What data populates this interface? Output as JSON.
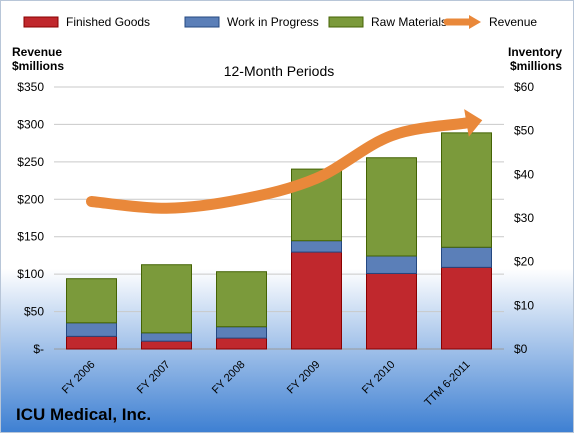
{
  "chart_data": {
    "type": "bar",
    "title": "12-Month Periods",
    "company": "ICU Medical, Inc.",
    "left_axis_label": [
      "Revenue",
      "$millions"
    ],
    "right_axis_label": [
      "Inventory",
      "$millions"
    ],
    "categories": [
      "FY 2006",
      "FY 2007",
      "FY 2008",
      "FY 2009",
      "FY 2010",
      "TTM 6-2011"
    ],
    "left_ticks": [
      "$-",
      "$50",
      "$100",
      "$150",
      "$200",
      "$250",
      "$300",
      "$350"
    ],
    "right_ticks": [
      "$0",
      "$10",
      "$20",
      "$30",
      "$40",
      "$50",
      "$60"
    ],
    "ylim_left": [
      0,
      350
    ],
    "ylim_right": [
      0,
      60
    ],
    "legend_position": "top",
    "series": [
      {
        "name": "Finished Goods",
        "axis": "right",
        "stack": true,
        "color": "#c0282d",
        "values": [
          2.9,
          1.8,
          2.5,
          22.2,
          17.3,
          18.7
        ]
      },
      {
        "name": "Work in Progress",
        "axis": "right",
        "stack": true,
        "color": "#5b7fb8",
        "values": [
          3.1,
          1.9,
          2.6,
          2.6,
          4.0,
          4.6
        ]
      },
      {
        "name": "Raw Materials",
        "axis": "right",
        "stack": true,
        "color": "#7b9a3b",
        "values": [
          10.1,
          15.6,
          12.6,
          16.4,
          22.5,
          26.2
        ]
      },
      {
        "name": "Revenue",
        "axis": "left",
        "type": "line",
        "color": "#e9883a",
        "values": [
          197,
          188,
          200,
          228,
          285,
          302
        ]
      }
    ],
    "grid": true
  }
}
